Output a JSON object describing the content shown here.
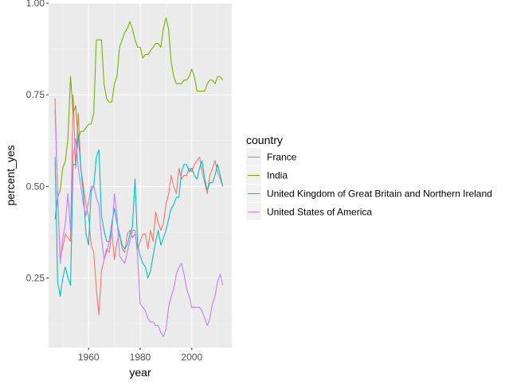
{
  "chart_data": {
    "type": "line",
    "title": "",
    "xlabel": "year",
    "ylabel": "percent_yes",
    "xlim": [
      1944.5,
      2015.5
    ],
    "ylim": [
      0.06,
      1.0
    ],
    "x_ticks": [
      1960,
      1980,
      2000
    ],
    "x_tick_labels": [
      "1960",
      "1980",
      "2000"
    ],
    "y_ticks": [
      0.25,
      0.5,
      0.75,
      1.0
    ],
    "y_tick_labels": [
      "0.25",
      "0.50",
      "0.75",
      "1.00"
    ],
    "grid": true,
    "legend": {
      "title": "country",
      "position": "right"
    },
    "series": [
      {
        "name": "France",
        "color": "#F8766D",
        "points": [
          [
            1947,
            0.74
          ],
          [
            1948,
            0.47
          ],
          [
            1949,
            0.3
          ],
          [
            1951,
            0.37
          ],
          [
            1953,
            0.35
          ],
          [
            1954,
            0.75
          ],
          [
            1955,
            0.55
          ],
          [
            1956,
            0.7
          ],
          [
            1957,
            0.55
          ],
          [
            1958,
            0.5
          ],
          [
            1959,
            0.45
          ],
          [
            1960,
            0.42
          ],
          [
            1961,
            0.34
          ],
          [
            1962,
            0.32
          ],
          [
            1963,
            0.22
          ],
          [
            1964,
            0.15
          ],
          [
            1965,
            0.27
          ],
          [
            1966,
            0.3
          ],
          [
            1967,
            0.33
          ],
          [
            1968,
            0.32
          ],
          [
            1969,
            0.38
          ],
          [
            1970,
            0.3
          ],
          [
            1971,
            0.35
          ],
          [
            1972,
            0.37
          ],
          [
            1973,
            0.33
          ],
          [
            1974,
            0.32
          ],
          [
            1975,
            0.37
          ],
          [
            1976,
            0.38
          ],
          [
            1977,
            0.36
          ],
          [
            1978,
            0.37
          ],
          [
            1979,
            0.33
          ],
          [
            1980,
            0.35
          ],
          [
            1981,
            0.37
          ],
          [
            1982,
            0.37
          ],
          [
            1983,
            0.33
          ],
          [
            1984,
            0.38
          ],
          [
            1985,
            0.35
          ],
          [
            1986,
            0.43
          ],
          [
            1987,
            0.4
          ],
          [
            1988,
            0.38
          ],
          [
            1989,
            0.4
          ],
          [
            1990,
            0.45
          ],
          [
            1991,
            0.48
          ],
          [
            1992,
            0.53
          ],
          [
            1993,
            0.5
          ],
          [
            1994,
            0.48
          ],
          [
            1995,
            0.55
          ],
          [
            1996,
            0.52
          ],
          [
            1997,
            0.53
          ],
          [
            1998,
            0.53
          ],
          [
            1999,
            0.55
          ],
          [
            2000,
            0.54
          ],
          [
            2001,
            0.56
          ],
          [
            2002,
            0.57
          ],
          [
            2003,
            0.58
          ],
          [
            2004,
            0.54
          ],
          [
            2005,
            0.51
          ],
          [
            2006,
            0.48
          ],
          [
            2007,
            0.53
          ],
          [
            2008,
            0.55
          ],
          [
            2009,
            0.57
          ],
          [
            2010,
            0.54
          ],
          [
            2011,
            0.52
          ],
          [
            2012,
            0.5
          ]
        ]
      },
      {
        "name": "India",
        "color": "#7CAE00",
        "points": [
          [
            1947,
            0.41
          ],
          [
            1948,
            0.47
          ],
          [
            1949,
            0.49
          ],
          [
            1950,
            0.55
          ],
          [
            1951,
            0.57
          ],
          [
            1952,
            0.63
          ],
          [
            1953,
            0.8
          ],
          [
            1954,
            0.7
          ],
          [
            1955,
            0.72
          ],
          [
            1956,
            0.63
          ],
          [
            1957,
            0.65
          ],
          [
            1958,
            0.65
          ],
          [
            1959,
            0.66
          ],
          [
            1960,
            0.67
          ],
          [
            1961,
            0.67
          ],
          [
            1962,
            0.7
          ],
          [
            1963,
            0.9
          ],
          [
            1964,
            0.9
          ],
          [
            1965,
            0.9
          ],
          [
            1966,
            0.78
          ],
          [
            1967,
            0.74
          ],
          [
            1968,
            0.73
          ],
          [
            1969,
            0.73
          ],
          [
            1970,
            0.78
          ],
          [
            1971,
            0.8
          ],
          [
            1972,
            0.88
          ],
          [
            1973,
            0.9
          ],
          [
            1974,
            0.92
          ],
          [
            1975,
            0.93
          ],
          [
            1976,
            0.95
          ],
          [
            1977,
            0.93
          ],
          [
            1978,
            0.9
          ],
          [
            1979,
            0.88
          ],
          [
            1980,
            0.88
          ],
          [
            1981,
            0.85
          ],
          [
            1982,
            0.86
          ],
          [
            1983,
            0.86
          ],
          [
            1984,
            0.87
          ],
          [
            1985,
            0.88
          ],
          [
            1986,
            0.89
          ],
          [
            1987,
            0.89
          ],
          [
            1988,
            0.88
          ],
          [
            1989,
            0.93
          ],
          [
            1990,
            0.96
          ],
          [
            1991,
            0.93
          ],
          [
            1992,
            0.84
          ],
          [
            1993,
            0.8
          ],
          [
            1994,
            0.78
          ],
          [
            1995,
            0.78
          ],
          [
            1996,
            0.78
          ],
          [
            1997,
            0.79
          ],
          [
            1998,
            0.79
          ],
          [
            1999,
            0.8
          ],
          [
            2000,
            0.82
          ],
          [
            2001,
            0.8
          ],
          [
            2002,
            0.76
          ],
          [
            2003,
            0.76
          ],
          [
            2004,
            0.76
          ],
          [
            2005,
            0.76
          ],
          [
            2006,
            0.78
          ],
          [
            2007,
            0.79
          ],
          [
            2008,
            0.79
          ],
          [
            2009,
            0.78
          ],
          [
            2010,
            0.8
          ],
          [
            2011,
            0.8
          ],
          [
            2012,
            0.79
          ]
        ]
      },
      {
        "name": "United Kingdom of Great Britain and Northern Ireland",
        "color": "#00BFC4",
        "points": [
          [
            1947,
            0.58
          ],
          [
            1948,
            0.24
          ],
          [
            1949,
            0.2
          ],
          [
            1950,
            0.25
          ],
          [
            1951,
            0.28
          ],
          [
            1952,
            0.25
          ],
          [
            1953,
            0.23
          ],
          [
            1954,
            0.56
          ],
          [
            1955,
            0.56
          ],
          [
            1956,
            0.64
          ],
          [
            1957,
            0.55
          ],
          [
            1958,
            0.48
          ],
          [
            1959,
            0.37
          ],
          [
            1960,
            0.34
          ],
          [
            1961,
            0.49
          ],
          [
            1962,
            0.5
          ],
          [
            1963,
            0.58
          ],
          [
            1964,
            0.6
          ],
          [
            1965,
            0.42
          ],
          [
            1966,
            0.38
          ],
          [
            1967,
            0.35
          ],
          [
            1968,
            0.35
          ],
          [
            1969,
            0.4
          ],
          [
            1970,
            0.44
          ],
          [
            1971,
            0.4
          ],
          [
            1972,
            0.37
          ],
          [
            1973,
            0.34
          ],
          [
            1974,
            0.33
          ],
          [
            1975,
            0.34
          ],
          [
            1976,
            0.37
          ],
          [
            1977,
            0.39
          ],
          [
            1978,
            0.52
          ],
          [
            1979,
            0.34
          ],
          [
            1980,
            0.31
          ],
          [
            1981,
            0.29
          ],
          [
            1982,
            0.28
          ],
          [
            1983,
            0.25
          ],
          [
            1984,
            0.27
          ],
          [
            1985,
            0.31
          ],
          [
            1986,
            0.35
          ],
          [
            1987,
            0.38
          ],
          [
            1988,
            0.34
          ],
          [
            1989,
            0.36
          ],
          [
            1990,
            0.38
          ],
          [
            1991,
            0.41
          ],
          [
            1992,
            0.44
          ],
          [
            1993,
            0.45
          ],
          [
            1994,
            0.47
          ],
          [
            1995,
            0.47
          ],
          [
            1996,
            0.54
          ],
          [
            1997,
            0.56
          ],
          [
            1998,
            0.56
          ],
          [
            1999,
            0.54
          ],
          [
            2000,
            0.55
          ],
          [
            2001,
            0.53
          ],
          [
            2002,
            0.52
          ],
          [
            2003,
            0.55
          ],
          [
            2004,
            0.57
          ],
          [
            2005,
            0.52
          ],
          [
            2006,
            0.49
          ],
          [
            2007,
            0.51
          ],
          [
            2008,
            0.51
          ],
          [
            2009,
            0.53
          ],
          [
            2010,
            0.56
          ],
          [
            2011,
            0.53
          ],
          [
            2012,
            0.5
          ]
        ]
      },
      {
        "name": "United States of America",
        "color": "#C77CFF",
        "points": [
          [
            1947,
            0.71
          ],
          [
            1948,
            0.48
          ],
          [
            1949,
            0.29
          ],
          [
            1950,
            0.36
          ],
          [
            1951,
            0.4
          ],
          [
            1952,
            0.48
          ],
          [
            1953,
            0.38
          ],
          [
            1954,
            0.58
          ],
          [
            1955,
            0.63
          ],
          [
            1956,
            0.55
          ],
          [
            1957,
            0.5
          ],
          [
            1958,
            0.45
          ],
          [
            1959,
            0.42
          ],
          [
            1960,
            0.46
          ],
          [
            1961,
            0.5
          ],
          [
            1962,
            0.5
          ],
          [
            1963,
            0.47
          ],
          [
            1964,
            0.45
          ],
          [
            1965,
            0.36
          ],
          [
            1966,
            0.3
          ],
          [
            1967,
            0.32
          ],
          [
            1968,
            0.35
          ],
          [
            1969,
            0.37
          ],
          [
            1970,
            0.48
          ],
          [
            1971,
            0.42
          ],
          [
            1972,
            0.31
          ],
          [
            1973,
            0.3
          ],
          [
            1974,
            0.29
          ],
          [
            1975,
            0.32
          ],
          [
            1976,
            0.35
          ],
          [
            1977,
            0.38
          ],
          [
            1978,
            0.38
          ],
          [
            1979,
            0.31
          ],
          [
            1980,
            0.18
          ],
          [
            1981,
            0.17
          ],
          [
            1982,
            0.16
          ],
          [
            1983,
            0.14
          ],
          [
            1984,
            0.13
          ],
          [
            1985,
            0.13
          ],
          [
            1986,
            0.12
          ],
          [
            1987,
            0.12
          ],
          [
            1988,
            0.1
          ],
          [
            1989,
            0.09
          ],
          [
            1990,
            0.11
          ],
          [
            1991,
            0.17
          ],
          [
            1992,
            0.2
          ],
          [
            1993,
            0.22
          ],
          [
            1994,
            0.26
          ],
          [
            1995,
            0.28
          ],
          [
            1996,
            0.29
          ],
          [
            1997,
            0.26
          ],
          [
            1998,
            0.22
          ],
          [
            1999,
            0.2
          ],
          [
            2000,
            0.17
          ],
          [
            2001,
            0.17
          ],
          [
            2002,
            0.17
          ],
          [
            2003,
            0.17
          ],
          [
            2004,
            0.16
          ],
          [
            2005,
            0.14
          ],
          [
            2006,
            0.12
          ],
          [
            2007,
            0.14
          ],
          [
            2008,
            0.18
          ],
          [
            2009,
            0.2
          ],
          [
            2010,
            0.24
          ],
          [
            2011,
            0.26
          ],
          [
            2012,
            0.23
          ]
        ]
      }
    ]
  }
}
